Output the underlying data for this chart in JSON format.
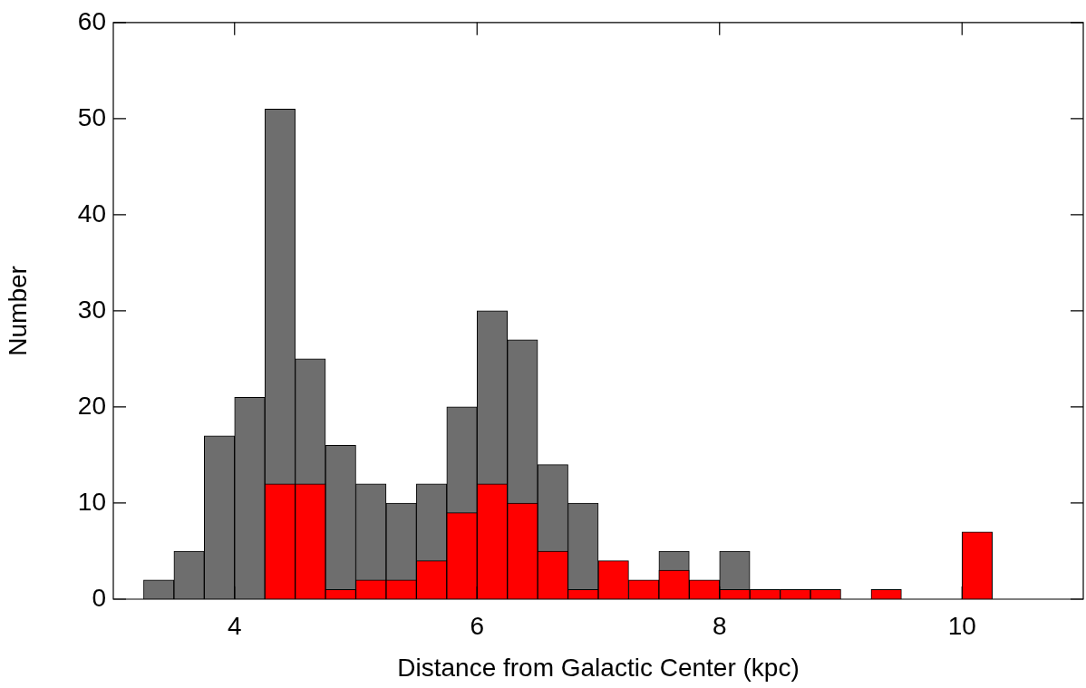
{
  "chart_data": {
    "type": "histogram",
    "xlabel": "Distance from Galactic Center (kpc)",
    "ylabel": "Number",
    "bins": [
      3.25,
      3.5,
      3.75,
      4.0,
      4.25,
      4.5,
      4.75,
      5.0,
      5.25,
      5.5,
      5.75,
      6.0,
      6.25,
      6.5,
      6.75,
      7.0,
      7.25,
      7.5,
      7.75,
      8.0,
      8.25,
      8.5,
      8.75,
      9.0,
      9.25,
      9.5,
      9.75,
      10.0,
      10.25
    ],
    "series": [
      {
        "color": "#6e6e6e",
        "values": [
          2,
          5,
          17,
          21,
          51,
          25,
          16,
          12,
          10,
          12,
          20,
          30,
          27,
          14,
          10,
          null,
          null,
          5,
          null,
          5,
          null,
          null,
          null,
          0,
          null,
          0,
          0,
          null
        ]
      },
      {
        "color": "#ff0000",
        "values": [
          0,
          0,
          0,
          0,
          12,
          12,
          1,
          2,
          2,
          4,
          9,
          12,
          10,
          5,
          1,
          4,
          2,
          3,
          2,
          1,
          1,
          1,
          1,
          0,
          1,
          0,
          0,
          7
        ]
      }
    ],
    "xlim": [
      3,
      11
    ],
    "ylim": [
      0,
      60
    ],
    "xticks": [
      4,
      6,
      8,
      10
    ],
    "yticks": [
      0,
      10,
      20,
      30,
      40,
      50,
      60
    ]
  }
}
